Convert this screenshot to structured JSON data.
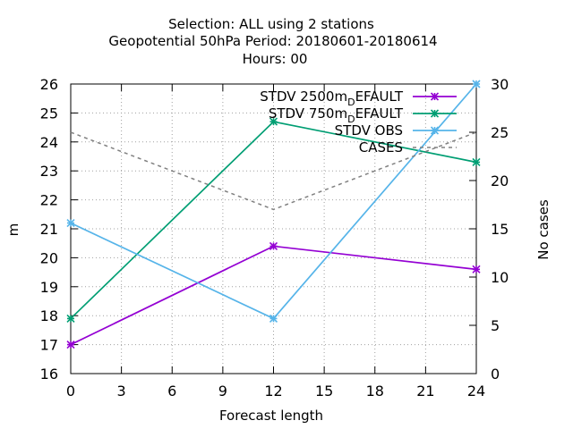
{
  "title": {
    "line1": "Selection: ALL using     2 stations",
    "line2": "Geopotential 50hPa   Period: 20180601-20180614",
    "line3": "Hours:  00"
  },
  "chart_data": {
    "type": "line",
    "xlabel": "Forecast length",
    "ylabel": "m",
    "y2label": "No cases",
    "xlim": [
      0,
      24
    ],
    "ylim": [
      16,
      26
    ],
    "y2lim": [
      0,
      30
    ],
    "xticks": [
      "0",
      "3",
      "6",
      "9",
      "12",
      "15",
      "18",
      "21",
      "24"
    ],
    "yticks": [
      "16",
      "17",
      "18",
      "19",
      "20",
      "21",
      "22",
      "23",
      "24",
      "25",
      "26"
    ],
    "y2ticks": [
      "0",
      "5",
      "10",
      "15",
      "20",
      "25",
      "30"
    ],
    "grid": true,
    "legend_position": "top-right",
    "series": [
      {
        "name": "STDV 2500m",
        "name_sub": "D",
        "name_tail": "EFAULT",
        "axis": "y",
        "x": [
          0,
          12,
          24
        ],
        "values": [
          17.0,
          20.4,
          19.6
        ],
        "color": "#9400d3",
        "style": "solid"
      },
      {
        "name": "STDV 750m",
        "name_sub": "D",
        "name_tail": "EFAULT",
        "axis": "y",
        "x": [
          0,
          12,
          24
        ],
        "values": [
          17.9,
          24.7,
          23.3
        ],
        "color": "#009e73",
        "style": "solid"
      },
      {
        "name": "STDV OBS",
        "axis": "y",
        "x": [
          0,
          12,
          24
        ],
        "values": [
          21.2,
          17.9,
          26.0
        ],
        "color": "#56b4e9",
        "style": "solid"
      },
      {
        "name": "CASES",
        "axis": "y2",
        "x": [
          0,
          12,
          24
        ],
        "values": [
          25,
          17,
          25
        ],
        "color": "#808080",
        "style": "dashed"
      }
    ]
  }
}
